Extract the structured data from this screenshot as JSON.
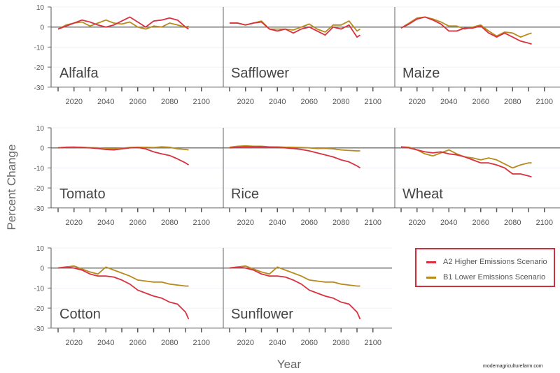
{
  "chart_data": {
    "type": "line",
    "ylabel": "Percent Change",
    "xlabel": "Year",
    "ylim": [
      -30,
      10
    ],
    "yticks": [
      10,
      0,
      -10,
      -20,
      -30
    ],
    "xlim": [
      2010,
      2100
    ],
    "xticks": [
      2020,
      2040,
      2060,
      2080,
      2100
    ],
    "grid": true,
    "legend_position": "right",
    "series_names": [
      "A2 Higher Emissions Scenario",
      "B1 Lower Emissions Scenario"
    ],
    "colors": {
      "A2": "#d7323f",
      "B1": "#b88a1c"
    },
    "x": [
      2010,
      2015,
      2020,
      2025,
      2030,
      2035,
      2040,
      2045,
      2050,
      2055,
      2060,
      2065,
      2070,
      2075,
      2080,
      2085,
      2090,
      2092
    ],
    "panels": [
      {
        "crop": "Alfalfa",
        "A2": [
          -1,
          0.5,
          2,
          3.5,
          2.5,
          1,
          0,
          1,
          3,
          5,
          2.5,
          0,
          3,
          3.5,
          4.5,
          3.5,
          0,
          -1
        ],
        "B1": [
          -1,
          1,
          2,
          2.5,
          0.5,
          2,
          3.5,
          2,
          1.5,
          2.5,
          0,
          -1,
          0.5,
          0,
          2,
          1,
          0,
          0.5
        ]
      },
      {
        "crop": "Safflower",
        "A2": [
          2,
          2,
          1,
          2,
          2.5,
          -1,
          -2,
          -1,
          -3,
          -1,
          0,
          -2,
          -4,
          0,
          -1,
          1,
          -5,
          -4
        ],
        "B1": [
          2,
          2,
          1,
          2,
          3,
          -1,
          -1,
          -1,
          -1.5,
          0,
          1.5,
          -1,
          -2.5,
          1,
          1,
          3,
          -2,
          -1
        ]
      },
      {
        "crop": "Maize",
        "A2": [
          -0.5,
          1.5,
          4,
          5,
          3.5,
          1.5,
          -2,
          -2,
          -0.5,
          -0.5,
          0.5,
          -3,
          -5,
          -3,
          -5,
          -7,
          -8,
          -8.5
        ],
        "B1": [
          -0.5,
          2,
          4.5,
          5,
          4,
          2.5,
          0.5,
          0.5,
          -1,
          0,
          1,
          -2,
          -4.5,
          -2.5,
          -3,
          -5,
          -3.5,
          -3
        ]
      },
      {
        "crop": "Tomato",
        "A2": [
          0,
          0.3,
          0.4,
          0.2,
          0,
          -0.3,
          -0.8,
          -1,
          -0.5,
          0,
          0.2,
          -0.5,
          -2,
          -3,
          -3.8,
          -5.5,
          -7.5,
          -8.5
        ],
        "B1": [
          0,
          0.3,
          0.4,
          0.3,
          0.1,
          0,
          -0.3,
          -0.5,
          -0.2,
          0.2,
          0.3,
          0.3,
          0.2,
          0.5,
          0.3,
          -0.5,
          -0.8,
          -1
        ]
      },
      {
        "crop": "Rice",
        "A2": [
          0,
          0.3,
          0.5,
          0.5,
          0.5,
          0.3,
          0.2,
          0,
          -0.3,
          -0.8,
          -1.5,
          -2.5,
          -3.5,
          -4.5,
          -6,
          -7,
          -9,
          -10
        ],
        "B1": [
          0.3,
          0.8,
          1,
          0.8,
          0.8,
          0.5,
          0.5,
          0.3,
          0.3,
          0.2,
          0,
          -0.3,
          -0.2,
          -0.5,
          -1,
          -1.3,
          -1.5,
          -1.5
        ]
      },
      {
        "crop": "Wheat",
        "A2": [
          0.5,
          0,
          -1,
          -2,
          -2.5,
          -2,
          -3,
          -3.5,
          -4.5,
          -6,
          -7.5,
          -7.5,
          -8.5,
          -10,
          -13,
          -13,
          -14,
          -14.5
        ],
        "B1": [
          0.5,
          0.3,
          -1,
          -3,
          -4,
          -2.5,
          -1,
          -3,
          -4.5,
          -5,
          -6,
          -5,
          -6,
          -8,
          -10,
          -8.5,
          -7.5,
          -7.5
        ]
      },
      {
        "crop": "Cotton",
        "A2": [
          0,
          0.5,
          0,
          -1,
          -3,
          -4,
          -4,
          -4.5,
          -6,
          -8,
          -11,
          -12.5,
          -14,
          -15,
          -17,
          -18,
          -22,
          -25.5
        ],
        "B1": [
          0,
          0.5,
          1,
          -0.5,
          -2,
          -3,
          0.5,
          -1,
          -2.5,
          -4,
          -6,
          -6.5,
          -7,
          -7,
          -8,
          -8.5,
          -9,
          -9
        ]
      },
      {
        "crop": "Sunflower",
        "A2": [
          0,
          0.5,
          0,
          -1,
          -3,
          -4,
          -4,
          -4.5,
          -6,
          -8,
          -11,
          -12.5,
          -14,
          -15,
          -17,
          -18,
          -22,
          -25.5
        ],
        "B1": [
          0,
          0.5,
          1,
          -0.5,
          -2,
          -3,
          0.5,
          -1,
          -2.5,
          -4,
          -6,
          -6.5,
          -7,
          -7,
          -8,
          -8.5,
          -9,
          -9
        ]
      }
    ]
  },
  "watermark": "modernagriculturefarm.com"
}
